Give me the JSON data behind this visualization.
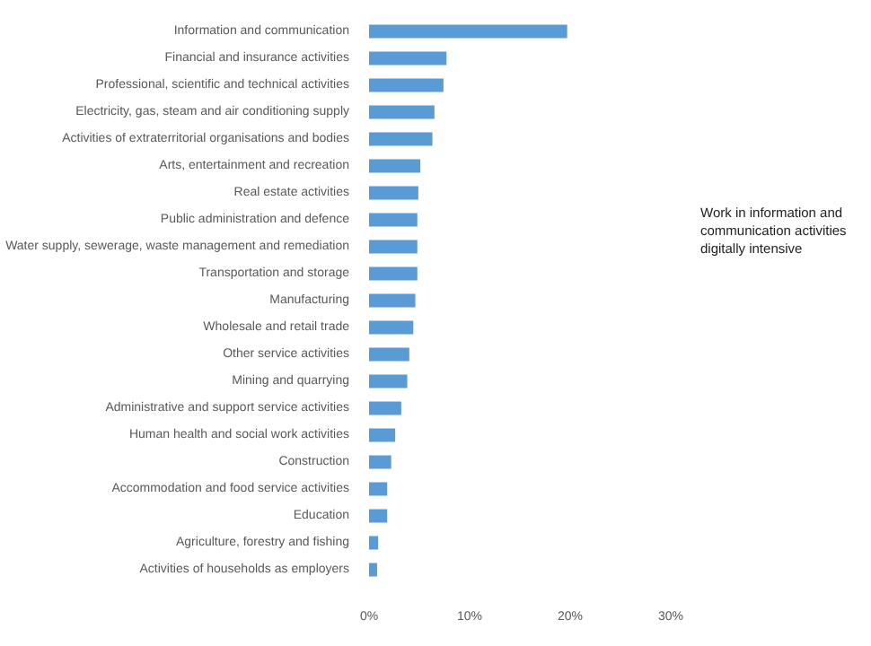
{
  "chart_data": {
    "type": "bar",
    "orientation": "horizontal",
    "categories": [
      "Information and communication",
      "Financial and insurance activities",
      "Professional, scientific and technical activities",
      "Electricity, gas, steam and air conditioning supply",
      "Activities of extraterritorial organisations and bodies",
      "Arts, entertainment and recreation",
      "Real estate activities",
      "Public administration and defence",
      "Water supply, sewerage, waste management and remediation",
      "Transportation and storage",
      "Manufacturing",
      "Wholesale and retail trade",
      "Other service activities",
      "Mining and quarrying",
      "Administrative and support service activities",
      "Human health and social work activities",
      "Construction",
      "Accommodation and food service activities",
      "Education",
      "Agriculture, forestry and fishing",
      "Activities of households as employers"
    ],
    "values": [
      19.7,
      7.7,
      7.4,
      6.5,
      6.3,
      5.1,
      4.9,
      4.8,
      4.8,
      4.8,
      4.6,
      4.4,
      4.0,
      3.8,
      3.2,
      2.6,
      2.2,
      1.8,
      1.8,
      0.9,
      0.8
    ],
    "color": "#5b9bd5",
    "xlim": [
      0,
      30
    ],
    "xticks": [
      {
        "value": 0,
        "label": "0%"
      },
      {
        "value": 10,
        "label": "10%"
      },
      {
        "value": 20,
        "label": "20%"
      },
      {
        "value": 30,
        "label": "30%"
      }
    ],
    "grid": false,
    "annotations": [
      "Work in information and communication activities digitally intensive"
    ]
  }
}
